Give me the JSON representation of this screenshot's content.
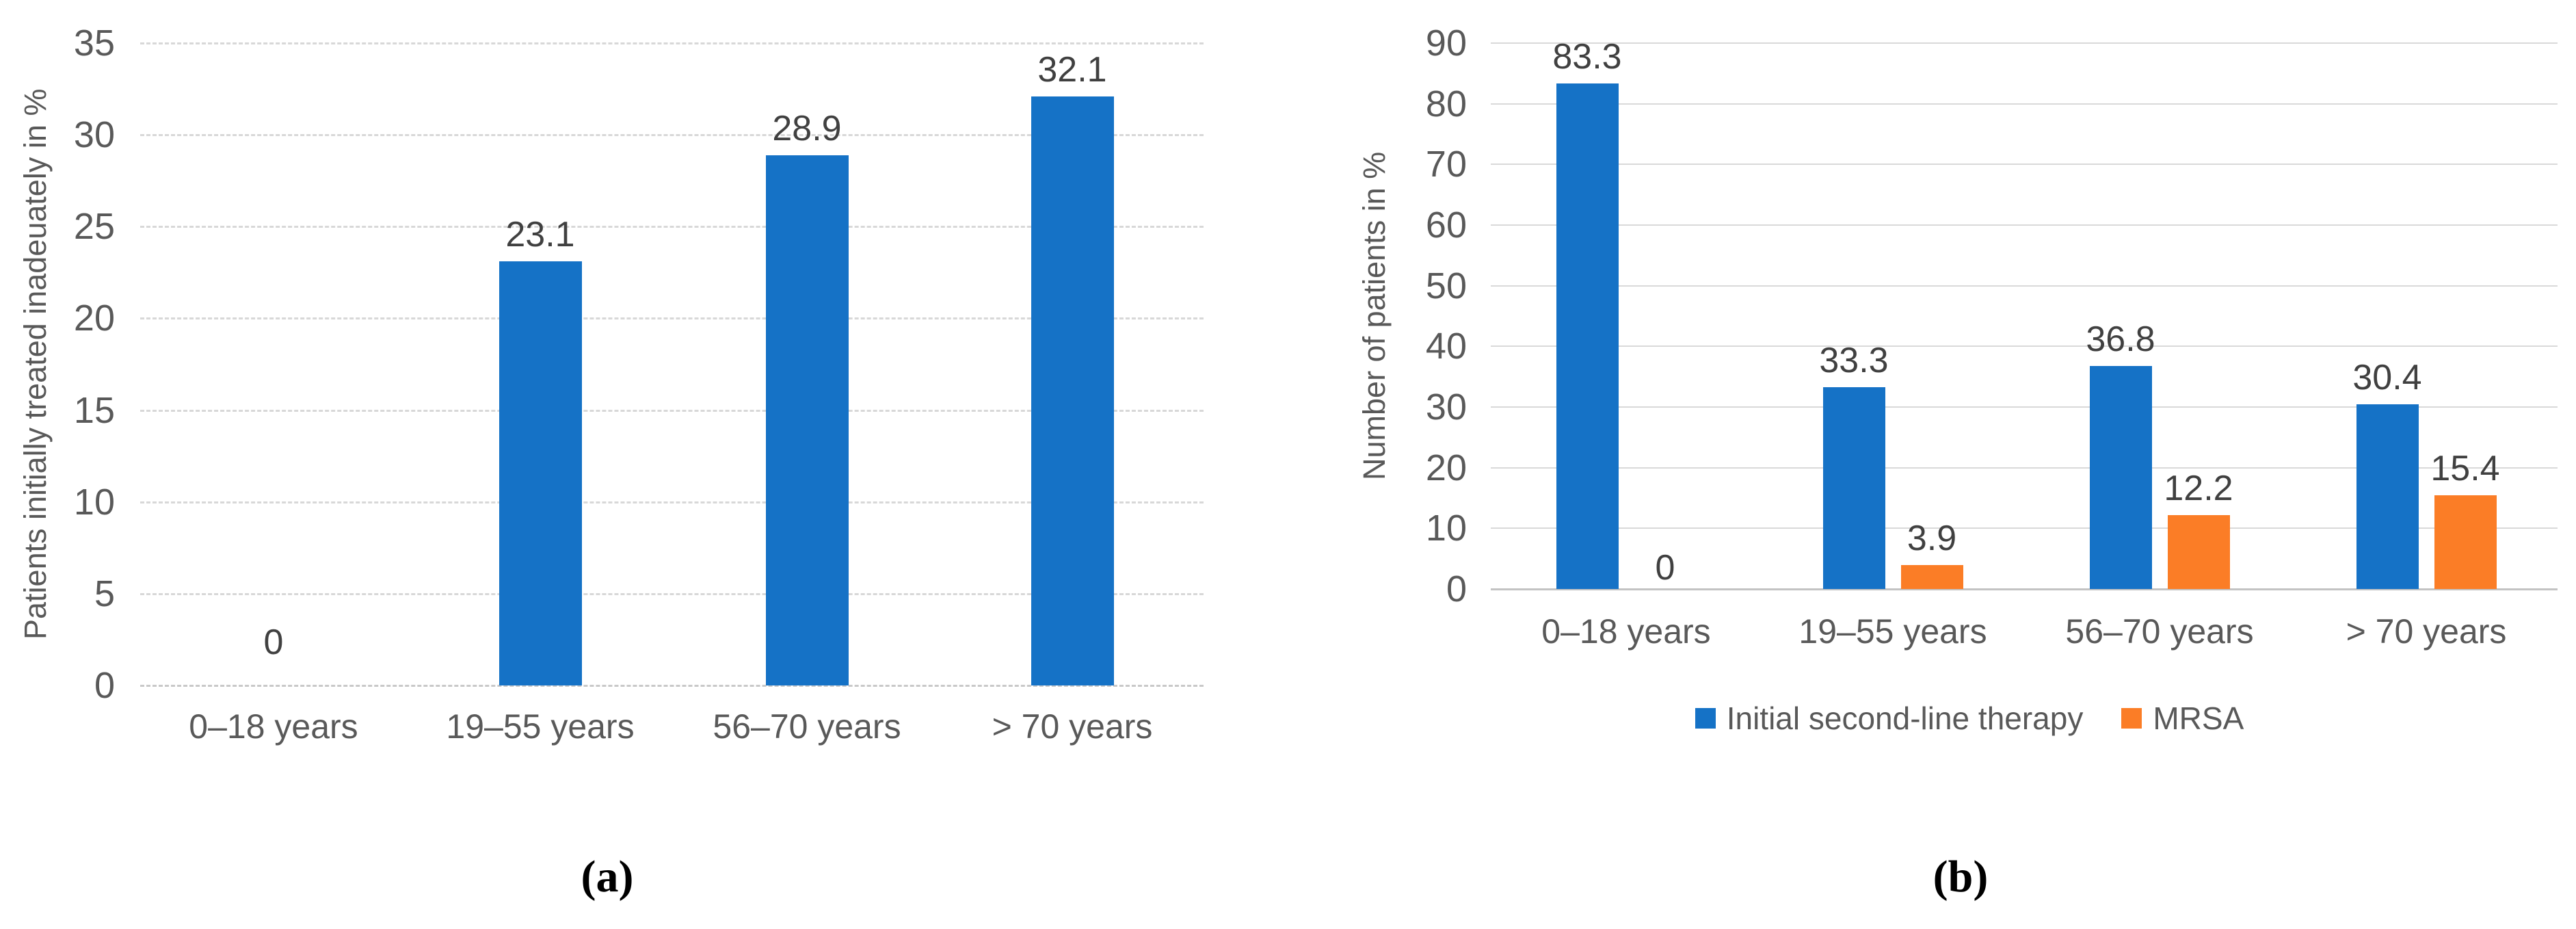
{
  "figure": {
    "caption_a": "(a)",
    "caption_b": "(b)"
  },
  "colors": {
    "series_blue": "#1572c6",
    "series_orange": "#fb7d26",
    "gridline": "#d9d9d9",
    "axis_text": "#595959",
    "value_text": "#404040"
  },
  "chart_data": [
    {
      "id": "a",
      "type": "bar",
      "title": "",
      "ylabel": "Patients initially treated inadeuately in %",
      "xlabel": "",
      "categories": [
        "0–18 years",
        "19–55 years",
        "56–70 years",
        "> 70 years"
      ],
      "series": [
        {
          "name": "Patients initially treated inadequately",
          "color_key": "series_blue",
          "values": [
            0,
            23.1,
            28.9,
            32.1
          ],
          "value_labels": [
            "0",
            "23.1",
            "28.9",
            "32.1"
          ]
        }
      ],
      "ylim": [
        0,
        35
      ],
      "yticks": [
        0,
        5,
        10,
        15,
        20,
        25,
        30,
        35
      ],
      "grid": "dashed",
      "legend": "none"
    },
    {
      "id": "b",
      "type": "bar",
      "title": "",
      "ylabel": "Number of patients in %",
      "xlabel": "",
      "categories": [
        "0–18 years",
        "19–55 years",
        "56–70 years",
        "> 70 years"
      ],
      "series": [
        {
          "name": "Initial second-line therapy",
          "color_key": "series_blue",
          "values": [
            83.3,
            33.3,
            36.8,
            30.4
          ],
          "value_labels": [
            "83.3",
            "33.3",
            "36.8",
            "30.4"
          ]
        },
        {
          "name": "MRSA",
          "color_key": "series_orange",
          "values": [
            0,
            3.9,
            12.2,
            15.4
          ],
          "value_labels": [
            "0",
            "3.9",
            "12.2",
            "15.4"
          ]
        }
      ],
      "ylim": [
        0,
        90
      ],
      "yticks": [
        0,
        10,
        20,
        30,
        40,
        50,
        60,
        70,
        80,
        90
      ],
      "grid": "solid",
      "legend": "bottom"
    }
  ]
}
